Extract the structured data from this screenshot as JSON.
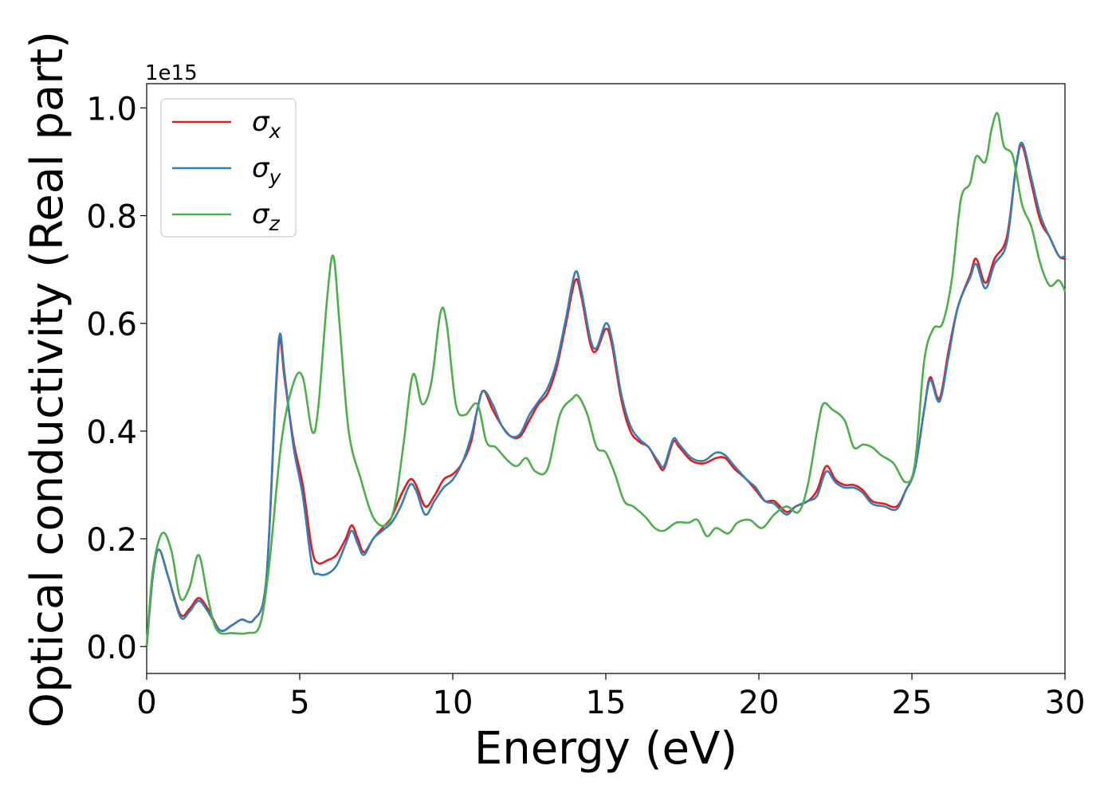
{
  "chart_data": {
    "type": "line",
    "title": "",
    "xlabel": "Energy (eV)",
    "ylabel": "Optical conductivity (Real part)",
    "y_scale_label": "1e15",
    "xlim": [
      0,
      30
    ],
    "ylim": [
      -0.05,
      1.045
    ],
    "xticks": [
      0,
      5,
      10,
      15,
      20,
      25,
      30
    ],
    "xtick_labels": [
      "0",
      "5",
      "10",
      "15",
      "20",
      "25",
      "30"
    ],
    "yticks": [
      0.0,
      0.2,
      0.4,
      0.6,
      0.8,
      1.0
    ],
    "ytick_labels": [
      "0.0",
      "0.2",
      "0.4",
      "0.6",
      "0.8",
      "1.0"
    ],
    "grid": false,
    "legend_position": "top-left",
    "series": [
      {
        "name": "σx",
        "base": "σ",
        "sub": "x",
        "color": "#e41a1c",
        "points": [
          [
            0,
            0.0
          ],
          [
            0.2,
            0.13
          ],
          [
            0.4,
            0.18
          ],
          [
            0.7,
            0.13
          ],
          [
            1.1,
            0.06
          ],
          [
            1.4,
            0.07
          ],
          [
            1.7,
            0.09
          ],
          [
            2.0,
            0.07
          ],
          [
            2.4,
            0.03
          ],
          [
            2.8,
            0.04
          ],
          [
            3.1,
            0.05
          ],
          [
            3.5,
            0.05
          ],
          [
            3.9,
            0.12
          ],
          [
            4.2,
            0.45
          ],
          [
            4.35,
            0.57
          ],
          [
            4.5,
            0.5
          ],
          [
            4.8,
            0.38
          ],
          [
            5.1,
            0.3
          ],
          [
            5.4,
            0.18
          ],
          [
            5.6,
            0.155
          ],
          [
            5.9,
            0.16
          ],
          [
            6.2,
            0.17
          ],
          [
            6.5,
            0.2
          ],
          [
            6.7,
            0.225
          ],
          [
            6.9,
            0.2
          ],
          [
            7.1,
            0.175
          ],
          [
            7.4,
            0.2
          ],
          [
            7.7,
            0.22
          ],
          [
            8.0,
            0.24
          ],
          [
            8.3,
            0.28
          ],
          [
            8.6,
            0.31
          ],
          [
            8.8,
            0.3
          ],
          [
            9.1,
            0.26
          ],
          [
            9.4,
            0.28
          ],
          [
            9.7,
            0.31
          ],
          [
            10.0,
            0.32
          ],
          [
            10.3,
            0.34
          ],
          [
            10.6,
            0.38
          ],
          [
            10.8,
            0.44
          ],
          [
            11.0,
            0.475
          ],
          [
            11.3,
            0.44
          ],
          [
            11.6,
            0.41
          ],
          [
            11.9,
            0.39
          ],
          [
            12.2,
            0.39
          ],
          [
            12.5,
            0.42
          ],
          [
            12.8,
            0.45
          ],
          [
            13.1,
            0.47
          ],
          [
            13.4,
            0.52
          ],
          [
            13.7,
            0.6
          ],
          [
            14.0,
            0.68
          ],
          [
            14.2,
            0.65
          ],
          [
            14.5,
            0.56
          ],
          [
            14.7,
            0.55
          ],
          [
            15.0,
            0.59
          ],
          [
            15.2,
            0.56
          ],
          [
            15.5,
            0.46
          ],
          [
            15.8,
            0.4
          ],
          [
            16.1,
            0.38
          ],
          [
            16.4,
            0.37
          ],
          [
            16.7,
            0.34
          ],
          [
            16.9,
            0.33
          ],
          [
            17.2,
            0.38
          ],
          [
            17.4,
            0.37
          ],
          [
            17.8,
            0.345
          ],
          [
            18.2,
            0.34
          ],
          [
            18.6,
            0.35
          ],
          [
            18.9,
            0.35
          ],
          [
            19.2,
            0.33
          ],
          [
            19.6,
            0.31
          ],
          [
            19.9,
            0.29
          ],
          [
            20.2,
            0.27
          ],
          [
            20.5,
            0.27
          ],
          [
            20.9,
            0.25
          ],
          [
            21.2,
            0.26
          ],
          [
            21.6,
            0.27
          ],
          [
            21.9,
            0.29
          ],
          [
            22.2,
            0.335
          ],
          [
            22.5,
            0.31
          ],
          [
            22.8,
            0.3
          ],
          [
            23.1,
            0.3
          ],
          [
            23.4,
            0.29
          ],
          [
            23.7,
            0.27
          ],
          [
            24.1,
            0.265
          ],
          [
            24.5,
            0.26
          ],
          [
            24.8,
            0.29
          ],
          [
            25.1,
            0.33
          ],
          [
            25.4,
            0.44
          ],
          [
            25.6,
            0.5
          ],
          [
            25.9,
            0.46
          ],
          [
            26.2,
            0.55
          ],
          [
            26.5,
            0.63
          ],
          [
            26.9,
            0.69
          ],
          [
            27.1,
            0.72
          ],
          [
            27.4,
            0.675
          ],
          [
            27.7,
            0.72
          ],
          [
            28.1,
            0.76
          ],
          [
            28.4,
            0.89
          ],
          [
            28.6,
            0.93
          ],
          [
            28.9,
            0.86
          ],
          [
            29.2,
            0.79
          ],
          [
            29.5,
            0.76
          ],
          [
            29.8,
            0.725
          ],
          [
            30.0,
            0.72
          ]
        ]
      },
      {
        "name": "σy",
        "base": "σ",
        "sub": "y",
        "color": "#377eb8",
        "points": [
          [
            0,
            0.0
          ],
          [
            0.2,
            0.13
          ],
          [
            0.4,
            0.18
          ],
          [
            0.7,
            0.13
          ],
          [
            1.1,
            0.055
          ],
          [
            1.4,
            0.065
          ],
          [
            1.7,
            0.085
          ],
          [
            2.0,
            0.065
          ],
          [
            2.4,
            0.03
          ],
          [
            2.8,
            0.04
          ],
          [
            3.1,
            0.05
          ],
          [
            3.5,
            0.05
          ],
          [
            3.9,
            0.12
          ],
          [
            4.2,
            0.46
          ],
          [
            4.35,
            0.58
          ],
          [
            4.5,
            0.51
          ],
          [
            4.8,
            0.37
          ],
          [
            5.1,
            0.28
          ],
          [
            5.4,
            0.15
          ],
          [
            5.6,
            0.135
          ],
          [
            5.9,
            0.135
          ],
          [
            6.2,
            0.15
          ],
          [
            6.5,
            0.19
          ],
          [
            6.7,
            0.215
          ],
          [
            6.9,
            0.19
          ],
          [
            7.1,
            0.17
          ],
          [
            7.4,
            0.2
          ],
          [
            7.7,
            0.215
          ],
          [
            8.0,
            0.23
          ],
          [
            8.3,
            0.26
          ],
          [
            8.6,
            0.3
          ],
          [
            8.8,
            0.29
          ],
          [
            9.1,
            0.245
          ],
          [
            9.4,
            0.27
          ],
          [
            9.7,
            0.295
          ],
          [
            10.0,
            0.31
          ],
          [
            10.3,
            0.34
          ],
          [
            10.6,
            0.39
          ],
          [
            10.8,
            0.44
          ],
          [
            11.0,
            0.475
          ],
          [
            11.3,
            0.45
          ],
          [
            11.6,
            0.41
          ],
          [
            11.9,
            0.39
          ],
          [
            12.2,
            0.395
          ],
          [
            12.5,
            0.43
          ],
          [
            12.8,
            0.455
          ],
          [
            13.1,
            0.48
          ],
          [
            13.4,
            0.53
          ],
          [
            13.7,
            0.61
          ],
          [
            14.0,
            0.695
          ],
          [
            14.2,
            0.66
          ],
          [
            14.5,
            0.57
          ],
          [
            14.7,
            0.555
          ],
          [
            15.0,
            0.6
          ],
          [
            15.2,
            0.57
          ],
          [
            15.5,
            0.47
          ],
          [
            15.8,
            0.41
          ],
          [
            16.1,
            0.385
          ],
          [
            16.4,
            0.37
          ],
          [
            16.7,
            0.345
          ],
          [
            16.9,
            0.335
          ],
          [
            17.2,
            0.385
          ],
          [
            17.4,
            0.375
          ],
          [
            17.8,
            0.35
          ],
          [
            18.2,
            0.345
          ],
          [
            18.6,
            0.36
          ],
          [
            18.9,
            0.355
          ],
          [
            19.2,
            0.335
          ],
          [
            19.6,
            0.31
          ],
          [
            19.9,
            0.295
          ],
          [
            20.2,
            0.27
          ],
          [
            20.5,
            0.265
          ],
          [
            20.9,
            0.245
          ],
          [
            21.2,
            0.26
          ],
          [
            21.6,
            0.27
          ],
          [
            21.9,
            0.28
          ],
          [
            22.2,
            0.325
          ],
          [
            22.5,
            0.305
          ],
          [
            22.8,
            0.295
          ],
          [
            23.1,
            0.295
          ],
          [
            23.4,
            0.285
          ],
          [
            23.7,
            0.265
          ],
          [
            24.1,
            0.26
          ],
          [
            24.5,
            0.255
          ],
          [
            24.8,
            0.29
          ],
          [
            25.1,
            0.33
          ],
          [
            25.4,
            0.44
          ],
          [
            25.6,
            0.495
          ],
          [
            25.9,
            0.455
          ],
          [
            26.2,
            0.54
          ],
          [
            26.5,
            0.63
          ],
          [
            26.9,
            0.685
          ],
          [
            27.1,
            0.71
          ],
          [
            27.4,
            0.665
          ],
          [
            27.7,
            0.71
          ],
          [
            28.1,
            0.75
          ],
          [
            28.4,
            0.89
          ],
          [
            28.6,
            0.935
          ],
          [
            28.9,
            0.87
          ],
          [
            29.2,
            0.8
          ],
          [
            29.5,
            0.76
          ],
          [
            29.8,
            0.725
          ],
          [
            30.0,
            0.725
          ]
        ]
      },
      {
        "name": "σz",
        "base": "σ",
        "sub": "z",
        "color": "#4daf4a",
        "points": [
          [
            0,
            0.0
          ],
          [
            0.2,
            0.14
          ],
          [
            0.5,
            0.21
          ],
          [
            0.8,
            0.18
          ],
          [
            1.1,
            0.09
          ],
          [
            1.4,
            0.11
          ],
          [
            1.7,
            0.17
          ],
          [
            2.0,
            0.09
          ],
          [
            2.3,
            0.03
          ],
          [
            2.8,
            0.025
          ],
          [
            3.3,
            0.025
          ],
          [
            3.7,
            0.04
          ],
          [
            4.0,
            0.15
          ],
          [
            4.4,
            0.38
          ],
          [
            4.8,
            0.49
          ],
          [
            5.1,
            0.5
          ],
          [
            5.4,
            0.4
          ],
          [
            5.6,
            0.44
          ],
          [
            5.9,
            0.65
          ],
          [
            6.1,
            0.725
          ],
          [
            6.3,
            0.6
          ],
          [
            6.6,
            0.4
          ],
          [
            7.0,
            0.31
          ],
          [
            7.4,
            0.24
          ],
          [
            7.8,
            0.225
          ],
          [
            8.1,
            0.26
          ],
          [
            8.4,
            0.38
          ],
          [
            8.7,
            0.505
          ],
          [
            9.0,
            0.45
          ],
          [
            9.3,
            0.49
          ],
          [
            9.6,
            0.62
          ],
          [
            9.8,
            0.6
          ],
          [
            10.1,
            0.45
          ],
          [
            10.4,
            0.43
          ],
          [
            10.8,
            0.45
          ],
          [
            11.1,
            0.38
          ],
          [
            11.4,
            0.37
          ],
          [
            11.8,
            0.345
          ],
          [
            12.1,
            0.335
          ],
          [
            12.4,
            0.35
          ],
          [
            12.7,
            0.325
          ],
          [
            13.1,
            0.33
          ],
          [
            13.5,
            0.43
          ],
          [
            13.9,
            0.46
          ],
          [
            14.1,
            0.465
          ],
          [
            14.4,
            0.43
          ],
          [
            14.7,
            0.37
          ],
          [
            15.0,
            0.36
          ],
          [
            15.3,
            0.32
          ],
          [
            15.6,
            0.27
          ],
          [
            15.9,
            0.26
          ],
          [
            16.3,
            0.24
          ],
          [
            16.6,
            0.22
          ],
          [
            16.9,
            0.215
          ],
          [
            17.3,
            0.23
          ],
          [
            17.7,
            0.23
          ],
          [
            18.0,
            0.235
          ],
          [
            18.3,
            0.205
          ],
          [
            18.6,
            0.22
          ],
          [
            19.0,
            0.21
          ],
          [
            19.3,
            0.23
          ],
          [
            19.7,
            0.235
          ],
          [
            20.1,
            0.22
          ],
          [
            20.5,
            0.245
          ],
          [
            20.9,
            0.26
          ],
          [
            21.3,
            0.25
          ],
          [
            21.6,
            0.3
          ],
          [
            21.9,
            0.4
          ],
          [
            22.1,
            0.45
          ],
          [
            22.4,
            0.44
          ],
          [
            22.8,
            0.42
          ],
          [
            23.1,
            0.37
          ],
          [
            23.4,
            0.375
          ],
          [
            23.7,
            0.37
          ],
          [
            24.0,
            0.355
          ],
          [
            24.4,
            0.34
          ],
          [
            24.8,
            0.305
          ],
          [
            25.1,
            0.34
          ],
          [
            25.4,
            0.53
          ],
          [
            25.7,
            0.59
          ],
          [
            26.0,
            0.6
          ],
          [
            26.3,
            0.68
          ],
          [
            26.6,
            0.83
          ],
          [
            26.9,
            0.86
          ],
          [
            27.1,
            0.91
          ],
          [
            27.4,
            0.9
          ],
          [
            27.6,
            0.96
          ],
          [
            27.8,
            0.99
          ],
          [
            28.0,
            0.93
          ],
          [
            28.3,
            0.91
          ],
          [
            28.6,
            0.82
          ],
          [
            28.9,
            0.78
          ],
          [
            29.2,
            0.71
          ],
          [
            29.5,
            0.67
          ],
          [
            29.8,
            0.68
          ],
          [
            30.0,
            0.66
          ]
        ]
      }
    ]
  }
}
